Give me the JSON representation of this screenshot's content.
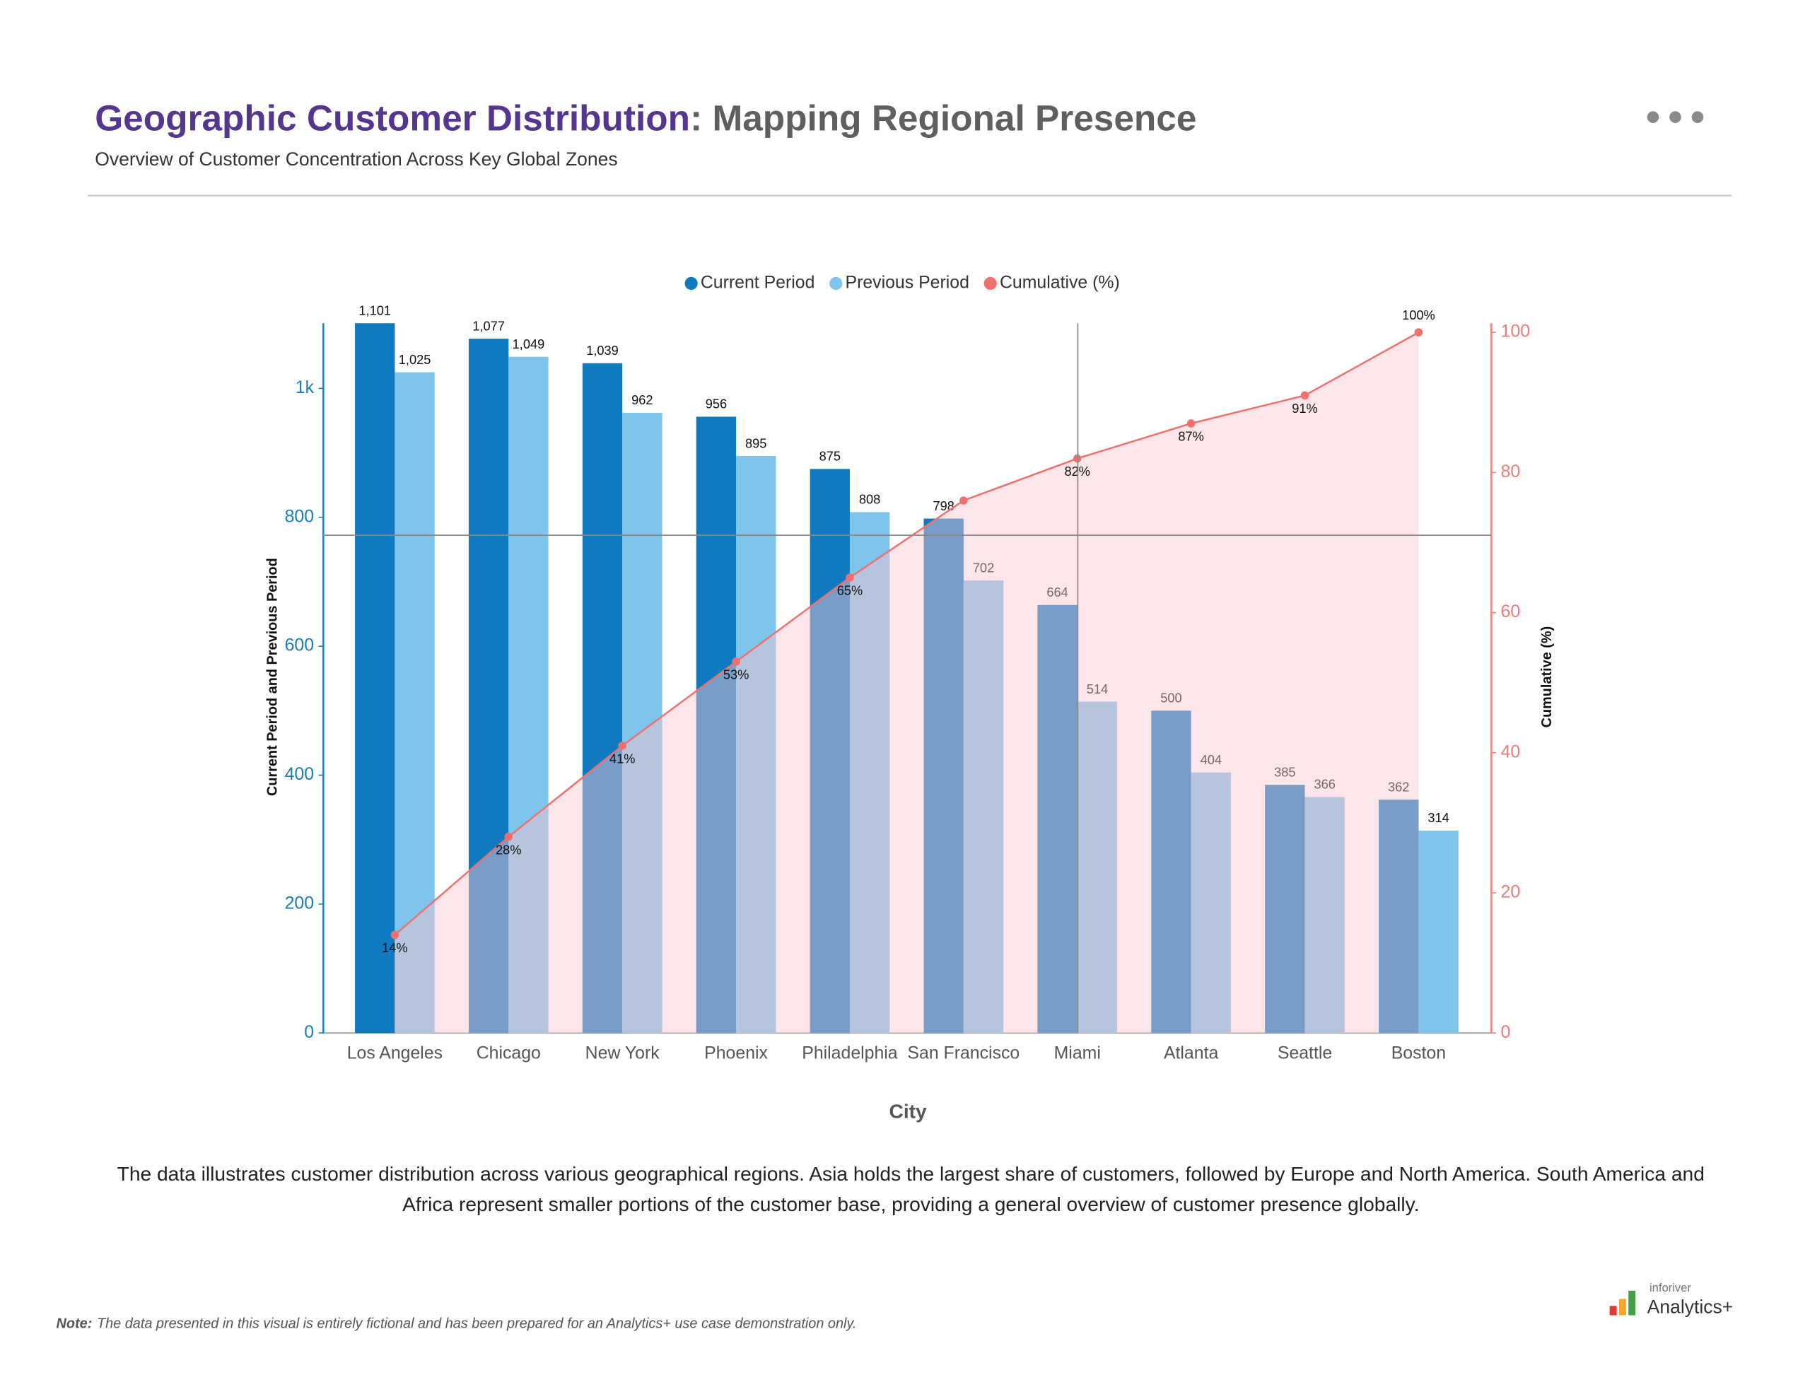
{
  "chart_data": {
    "type": "bar",
    "title": "Geographic Customer Distribution",
    "title_rest": ": Mapping Regional Presence",
    "subtitle": "Overview of Customer Concentration Across Key Global Zones",
    "x_label": "City",
    "y_label": "Current Period and Previous Period",
    "y2_label": "Cumulative (%)",
    "categories": [
      "Los Angeles",
      "Chicago",
      "New York",
      "Phoenix",
      "Philadelphia",
      "San Francisco",
      "Miami",
      "Atlanta",
      "Seattle",
      "Boston"
    ],
    "series": [
      {
        "name": "Current Period",
        "color": "#0f7ac0",
        "values": [
          1101,
          1077,
          1039,
          956,
          875,
          798,
          664,
          500,
          385,
          362
        ],
        "value_labels": [
          "1,101",
          "1,077",
          "1,039",
          "956",
          "875",
          "798",
          "664",
          "500",
          "385",
          "362"
        ]
      },
      {
        "name": "Previous Period",
        "color": "#7fc4ea",
        "values": [
          1025,
          1049,
          962,
          895,
          808,
          702,
          514,
          404,
          366,
          314
        ],
        "value_labels": [
          "1,025",
          "1,049",
          "962",
          "895",
          "808",
          "702",
          "514",
          "404",
          "366",
          "314"
        ]
      },
      {
        "name": "Cumulative (%)",
        "type": "line",
        "axis": "y2",
        "color": "#f07070",
        "values": [
          14,
          28,
          41,
          53,
          65,
          76,
          82,
          87,
          91,
          100
        ],
        "value_labels": [
          "14%",
          "28%",
          "41%",
          "53%",
          "65%",
          null,
          "82%",
          "87%",
          "91%",
          "100%"
        ]
      }
    ],
    "ylim": [
      0,
      1101
    ],
    "yticks": [
      0,
      200,
      400,
      600,
      800,
      {
        "value": 1000,
        "label": "1k"
      }
    ],
    "y2lim": [
      0,
      101.3
    ],
    "y2ticks": [
      0,
      20,
      40,
      60,
      80,
      100
    ],
    "legend": "top"
  },
  "description": "The data illustrates customer distribution across various geographical regions. Asia holds the largest share of customers, followed by Europe and North America. South America and Africa represent smaller portions of the customer base, providing a general overview of customer presence globally.",
  "note_label": "Note:",
  "note_text": "The data presented in this visual is entirely fictional and has been prepared for an Analytics+ use case demonstration only.",
  "logo_small": "inforiver",
  "logo_main": "Analytics+"
}
